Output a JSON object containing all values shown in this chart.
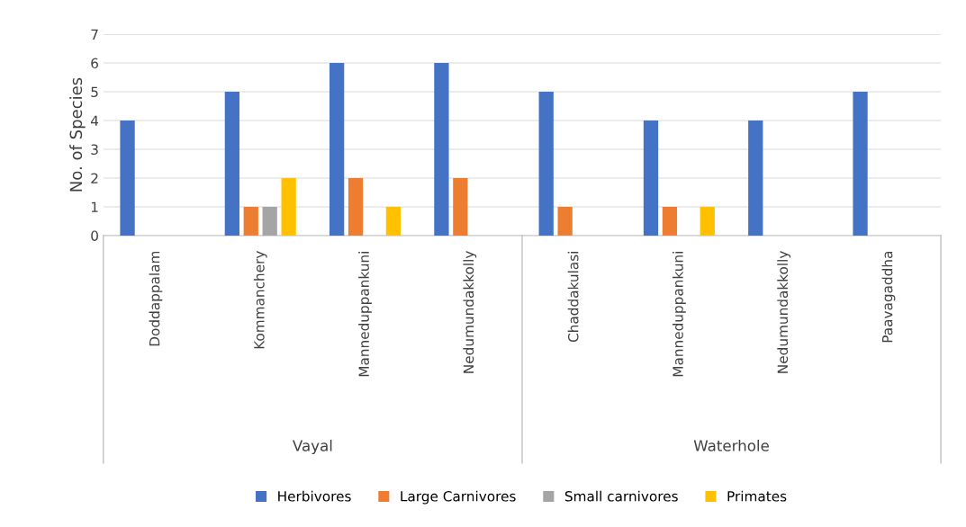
{
  "chart_data": {
    "type": "bar",
    "ylabel": "No. of Species",
    "categories": [
      "Doddappalam",
      "Kommanchery",
      "Manneduppankuni",
      "Nedumundakkolly",
      "Chaddakulasi",
      "Manneduppankuni",
      "Nedumundakkolly",
      "Paavagaddha"
    ],
    "series": [
      {
        "name": "Herbivores",
        "color": "#4472c4",
        "values": [
          4,
          5,
          6,
          6,
          5,
          4,
          4,
          5
        ]
      },
      {
        "name": "Large Carnivores",
        "color": "#ed7d31",
        "values": [
          null,
          1,
          2,
          2,
          1,
          1,
          null,
          null
        ]
      },
      {
        "name": "Small carnivores",
        "color": "#a5a5a5",
        "values": [
          null,
          1,
          null,
          null,
          null,
          null,
          null,
          null
        ]
      },
      {
        "name": "Primates",
        "color": "#ffc000",
        "values": [
          null,
          2,
          1,
          null,
          null,
          1,
          null,
          null
        ]
      }
    ],
    "annotations": [
      "Vayal",
      "Waterhole"
    ],
    "ylim": [
      0,
      7
    ],
    "yticks": [
      0,
      1,
      2,
      3,
      4,
      5,
      6,
      7
    ],
    "grid": "y",
    "legend": "bottom"
  }
}
